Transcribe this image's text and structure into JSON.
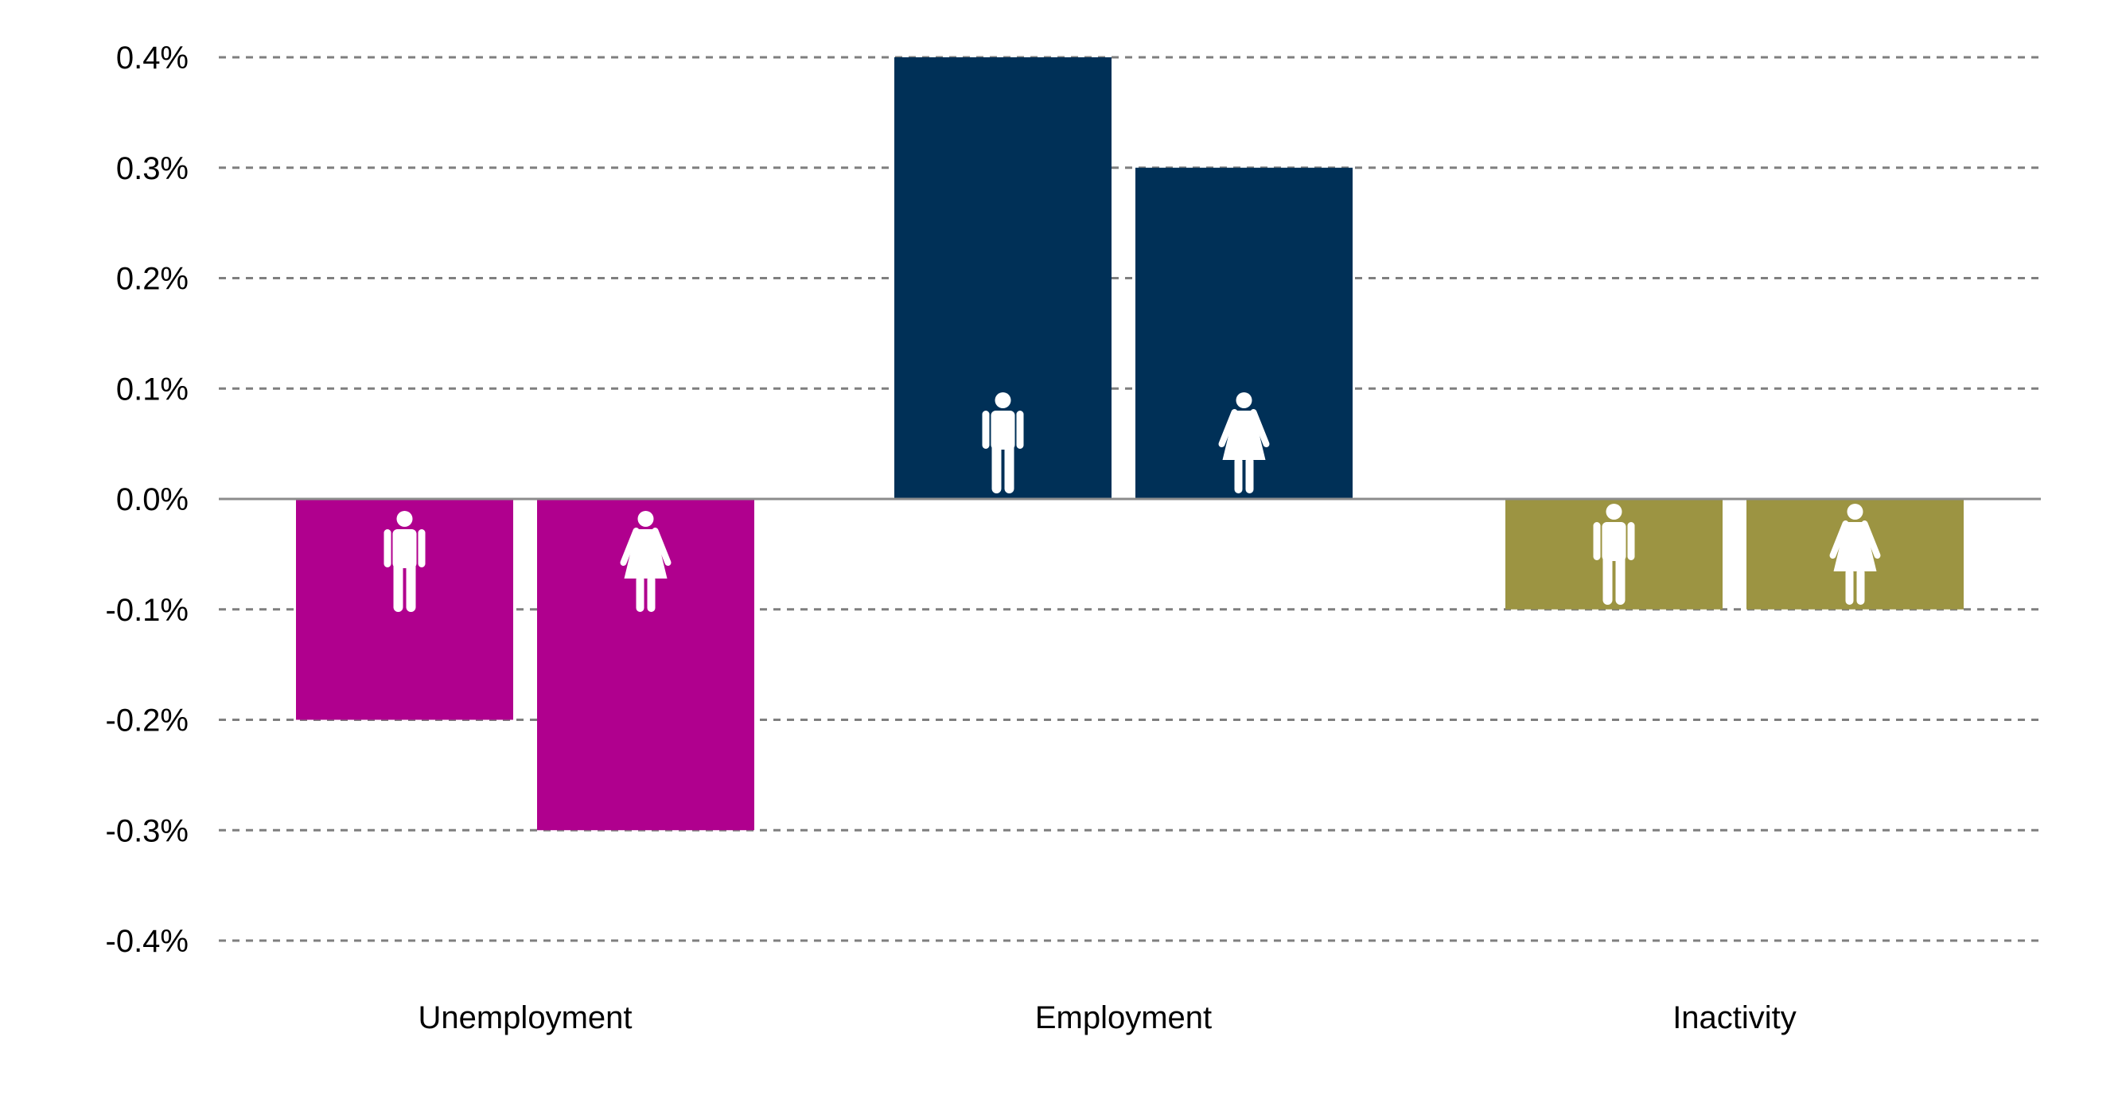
{
  "chart_data": {
    "type": "bar",
    "title": "",
    "xlabel": "",
    "ylabel": "",
    "categories": [
      "Unemployment",
      "Employment",
      "Inactivity"
    ],
    "series": [
      {
        "icon": "male-figure-icon",
        "values": [
          -0.2,
          0.4,
          -0.1
        ]
      },
      {
        "icon": "female-figure-icon",
        "values": [
          -0.3,
          0.3,
          -0.1
        ]
      }
    ],
    "category_colors": [
      "#b0008e",
      "#003057",
      "#9c9442"
    ],
    "ylim": [
      -0.4,
      0.4
    ],
    "yticks": [
      0.4,
      0.3,
      0.2,
      0.1,
      0.0,
      -0.1,
      -0.2,
      -0.3,
      -0.4
    ],
    "ytick_labels": [
      "0.4%",
      "0.3%",
      "0.2%",
      "0.1%",
      "0.0%",
      "-0.1%",
      "-0.2%",
      "-0.3%",
      "-0.4%"
    ],
    "grid": true,
    "legend": "none"
  }
}
